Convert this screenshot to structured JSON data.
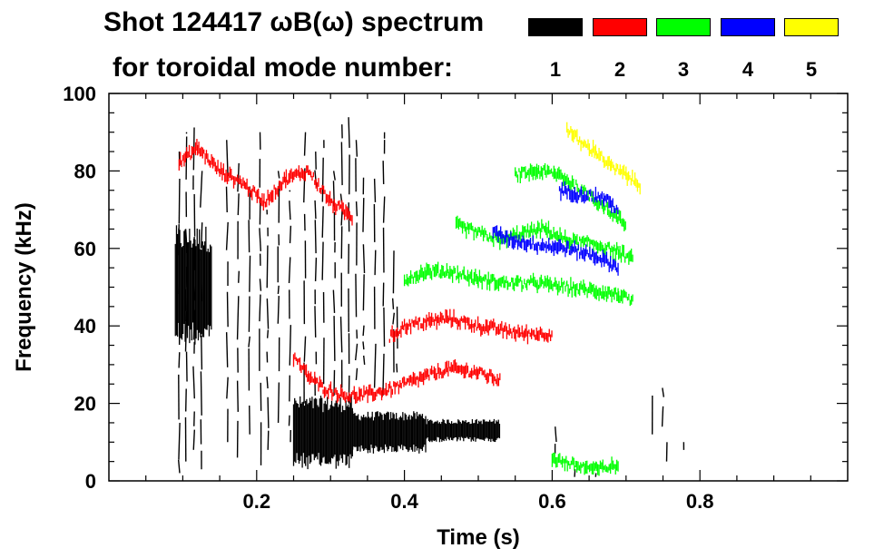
{
  "header": {
    "title_line1": "Shot 124417 ωB(ω) spectrum",
    "title_line2": "for toroidal mode number:"
  },
  "legend": [
    {
      "label": "1",
      "color": "#000000"
    },
    {
      "label": "2",
      "color": "#ff0000"
    },
    {
      "label": "3",
      "color": "#00ff00"
    },
    {
      "label": "4",
      "color": "#0000ff"
    },
    {
      "label": "5",
      "color": "#ffff00"
    }
  ],
  "chart_data": {
    "type": "scatter",
    "title": "Shot 124417 ωB(ω) spectrum for toroidal mode number:",
    "xlabel": "Time (s)",
    "ylabel": "Frequency (kHz)",
    "xlim": [
      0.0,
      1.0
    ],
    "ylim": [
      0,
      100
    ],
    "xticks": [
      0.2,
      0.4,
      0.6,
      0.8
    ],
    "xtick_labels": [
      "0.2",
      "0.4",
      "0.6",
      "0.8"
    ],
    "yticks": [
      0,
      20,
      40,
      60,
      80,
      100
    ],
    "ytick_labels": [
      "0",
      "20",
      "40",
      "60",
      "80",
      "100"
    ],
    "series": [
      {
        "name": "1",
        "color": "#000000",
        "bands": [
          {
            "x": [
              0.09,
              0.14
            ],
            "y": [
              35,
              66
            ]
          },
          {
            "x": [
              0.25,
              0.33
            ],
            "y": [
              3,
              22
            ]
          },
          {
            "x": [
              0.33,
              0.43
            ],
            "y": [
              7,
              18
            ]
          },
          {
            "x": [
              0.43,
              0.53
            ],
            "y": [
              10,
              16
            ]
          }
        ],
        "streaks": [
          {
            "x": 0.095,
            "y": [
              2,
              85
            ]
          },
          {
            "x": 0.105,
            "y": [
              5,
              90
            ]
          },
          {
            "x": 0.115,
            "y": [
              8,
              92
            ]
          },
          {
            "x": 0.125,
            "y": [
              3,
              80
            ]
          },
          {
            "x": 0.16,
            "y": [
              10,
              88
            ]
          },
          {
            "x": 0.175,
            "y": [
              6,
              82
            ]
          },
          {
            "x": 0.19,
            "y": [
              12,
              76
            ]
          },
          {
            "x": 0.205,
            "y": [
              4,
              90
            ]
          },
          {
            "x": 0.215,
            "y": [
              8,
              70
            ]
          },
          {
            "x": 0.23,
            "y": [
              15,
              80
            ]
          },
          {
            "x": 0.245,
            "y": [
              10,
              75
            ]
          },
          {
            "x": 0.265,
            "y": [
              20,
              90
            ]
          },
          {
            "x": 0.28,
            "y": [
              22,
              85
            ]
          },
          {
            "x": 0.29,
            "y": [
              25,
              88
            ]
          },
          {
            "x": 0.305,
            "y": [
              22,
              80
            ]
          },
          {
            "x": 0.315,
            "y": [
              24,
              92
            ]
          },
          {
            "x": 0.325,
            "y": [
              20,
              95
            ]
          },
          {
            "x": 0.335,
            "y": [
              26,
              88
            ]
          },
          {
            "x": 0.345,
            "y": [
              30,
              80
            ]
          },
          {
            "x": 0.36,
            "y": [
              24,
              78
            ]
          },
          {
            "x": 0.372,
            "y": [
              22,
              90
            ]
          },
          {
            "x": 0.385,
            "y": [
              28,
              60
            ]
          },
          {
            "x": 0.39,
            "y": [
              28,
              45
            ]
          },
          {
            "x": 0.605,
            "y": [
              7,
              14
            ]
          },
          {
            "x": 0.63,
            "y": [
              1,
              3
            ]
          },
          {
            "x": 0.66,
            "y": [
              1,
              2
            ]
          },
          {
            "x": 0.735,
            "y": [
              12,
              22
            ]
          },
          {
            "x": 0.75,
            "y": [
              14,
              24
            ]
          },
          {
            "x": 0.755,
            "y": [
              5,
              10
            ]
          },
          {
            "x": 0.778,
            "y": [
              8,
              10
            ]
          }
        ]
      },
      {
        "name": "2",
        "color": "#ff0000",
        "curves": [
          {
            "points": [
              [
                0.25,
                32
              ],
              [
                0.27,
                27
              ],
              [
                0.29,
                24
              ],
              [
                0.32,
                22
              ],
              [
                0.34,
                22
              ],
              [
                0.37,
                23
              ],
              [
                0.4,
                25
              ],
              [
                0.43,
                27
              ],
              [
                0.46,
                29
              ],
              [
                0.5,
                28
              ],
              [
                0.53,
                26
              ]
            ]
          },
          {
            "points": [
              [
                0.38,
                37
              ],
              [
                0.4,
                40
              ],
              [
                0.43,
                41
              ],
              [
                0.46,
                42
              ],
              [
                0.5,
                40
              ],
              [
                0.53,
                39
              ],
              [
                0.56,
                38
              ],
              [
                0.6,
                38
              ]
            ]
          },
          {
            "points": [
              [
                0.095,
                82
              ],
              [
                0.12,
                86
              ],
              [
                0.15,
                80
              ],
              [
                0.18,
                77
              ],
              [
                0.21,
                72
              ],
              [
                0.24,
                78
              ],
              [
                0.27,
                80
              ],
              [
                0.3,
                72
              ],
              [
                0.33,
                68
              ]
            ]
          }
        ]
      },
      {
        "name": "3",
        "color": "#00ff00",
        "curves": [
          {
            "points": [
              [
                0.4,
                52
              ],
              [
                0.43,
                54
              ],
              [
                0.46,
                54
              ],
              [
                0.5,
                52
              ],
              [
                0.54,
                51
              ],
              [
                0.58,
                51
              ],
              [
                0.62,
                50
              ],
              [
                0.66,
                49
              ],
              [
                0.69,
                48
              ],
              [
                0.71,
                46
              ]
            ]
          },
          {
            "points": [
              [
                0.47,
                66
              ],
              [
                0.5,
                64
              ],
              [
                0.53,
                62
              ],
              [
                0.56,
                64
              ],
              [
                0.59,
                65
              ],
              [
                0.62,
                62
              ],
              [
                0.66,
                61
              ],
              [
                0.69,
                59
              ],
              [
                0.71,
                57
              ]
            ]
          },
          {
            "points": [
              [
                0.55,
                79
              ],
              [
                0.58,
                80
              ],
              [
                0.61,
                79
              ],
              [
                0.64,
                75
              ],
              [
                0.67,
                71
              ],
              [
                0.7,
                66
              ]
            ]
          },
          {
            "points": [
              [
                0.6,
                6
              ],
              [
                0.63,
                4
              ],
              [
                0.66,
                3
              ],
              [
                0.69,
                4
              ]
            ]
          }
        ]
      },
      {
        "name": "4",
        "color": "#0000ff",
        "curves": [
          {
            "points": [
              [
                0.61,
                75
              ],
              [
                0.64,
                74
              ],
              [
                0.67,
                73
              ],
              [
                0.69,
                70
              ]
            ]
          },
          {
            "points": [
              [
                0.52,
                64
              ],
              [
                0.55,
                62
              ],
              [
                0.58,
                61
              ],
              [
                0.62,
                60
              ],
              [
                0.66,
                58
              ],
              [
                0.69,
                55
              ]
            ]
          }
        ]
      },
      {
        "name": "5",
        "color": "#ffff00",
        "curves": [
          {
            "points": [
              [
                0.62,
                91
              ],
              [
                0.64,
                87
              ],
              [
                0.66,
                85
              ],
              [
                0.68,
                81
              ],
              [
                0.7,
                79
              ],
              [
                0.72,
                76
              ]
            ]
          }
        ]
      }
    ]
  }
}
